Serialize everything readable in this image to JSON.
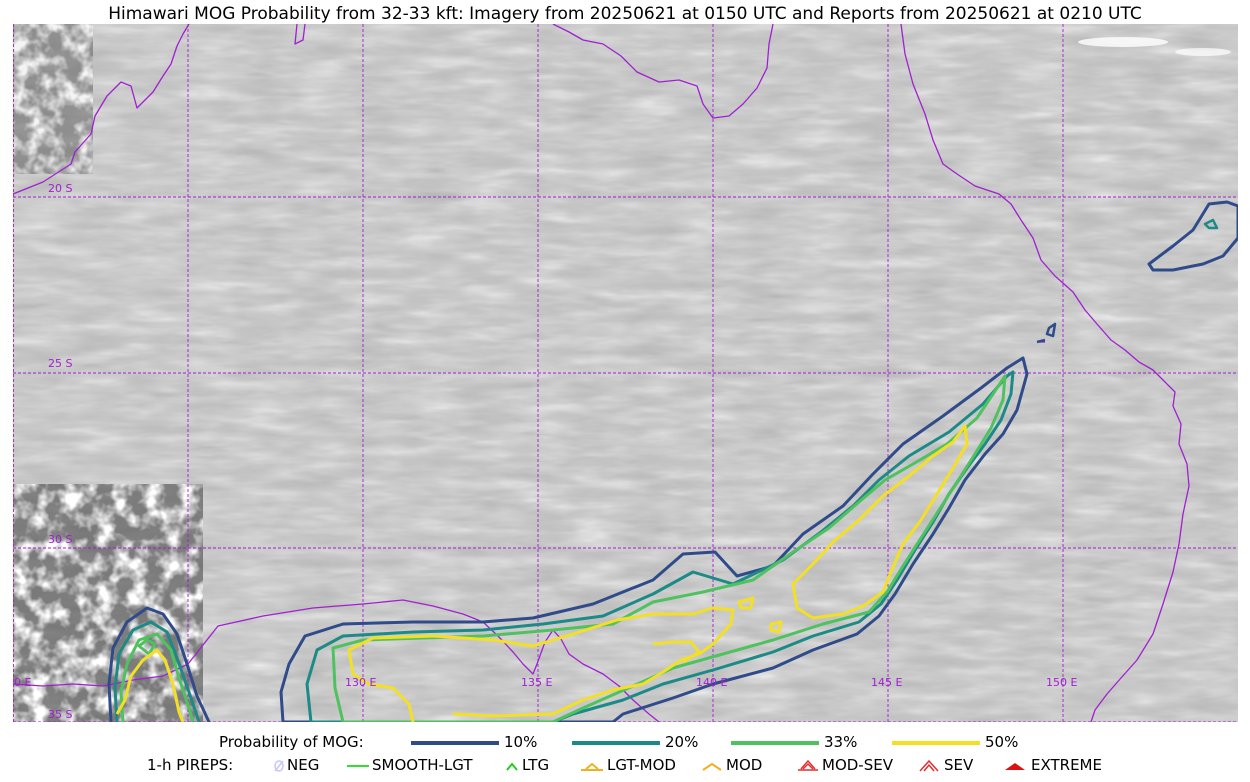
{
  "title": "Himawari MOG Probability from 32-33 kft: Imagery from 20250621 at 0150 UTC and Reports from 20250621 at 0210 UTC",
  "map": {
    "lat_labels": [
      "20 S",
      "25 S",
      "30 S",
      "35 S"
    ],
    "lon_labels": [
      "120 E",
      "130 E",
      "135 E",
      "140 E",
      "145 E",
      "150 E"
    ],
    "grid_color": "#a020d0",
    "coast_color": "#a020d0"
  },
  "legend": {
    "prob_label": "Probability of MOG:",
    "levels": [
      {
        "label": "10%",
        "color": "#2f4b8a"
      },
      {
        "label": "20%",
        "color": "#1c8a86"
      },
      {
        "label": "33%",
        "color": "#4fc25f"
      },
      {
        "label": "50%",
        "color": "#f3e025"
      }
    ],
    "pirep_label": "1-h PIREPS:",
    "pireps": [
      {
        "label": "NEG",
        "color": "#c6c6ff",
        "icon": "neg-icon"
      },
      {
        "label": "SMOOTH-LGT",
        "color": "#33dd33",
        "icon": "line-icon"
      },
      {
        "label": "LTG",
        "color": "#22cc22",
        "icon": "caret-icon"
      },
      {
        "label": "LGT-MOD",
        "color": "#f0b020",
        "icon": "caret-bar-icon"
      },
      {
        "label": "MOD",
        "color": "#f0b020",
        "icon": "caret-icon"
      },
      {
        "label": "MOD-SEV",
        "color": "#e03030",
        "icon": "double-caret-bar-icon"
      },
      {
        "label": "SEV",
        "color": "#e03030",
        "icon": "double-caret-icon"
      },
      {
        "label": "EXTREME",
        "color": "#e01010",
        "icon": "filled-caret-icon"
      }
    ]
  }
}
